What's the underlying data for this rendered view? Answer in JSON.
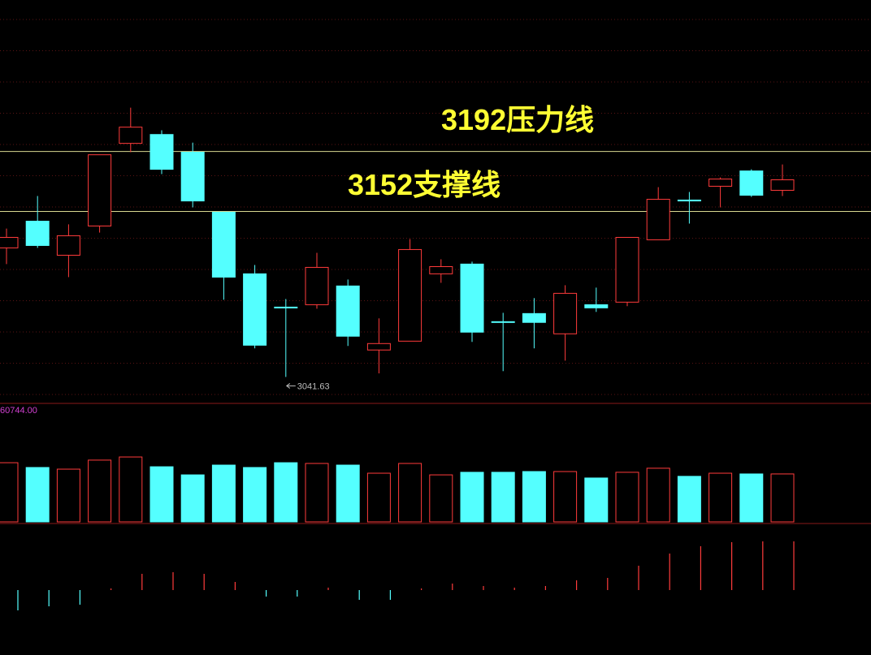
{
  "chart_data": {
    "type": "candlestick",
    "open": [
      3127.7,
      3145.5,
      3122.8,
      3142.3,
      3197.4,
      3203.3,
      3191.5,
      3151.5,
      3110.4,
      3088.2,
      3089.8,
      3102.3,
      3059.6,
      3065.5,
      3110.4,
      3116.9,
      3078.5,
      3083.9,
      3070.4,
      3089.8,
      3091.5,
      3133.1,
      3159.6,
      3168.8,
      3179.0,
      3166.1
    ],
    "close": [
      3134.7,
      3129.3,
      3135.8,
      3189.8,
      3208.2,
      3180.1,
      3159.0,
      3108.2,
      3062.8,
      3087.7,
      3114.7,
      3068.8,
      3063.9,
      3126.6,
      3115.2,
      3071.5,
      3078.0,
      3078.0,
      3097.4,
      3087.7,
      3134.7,
      3160.1,
      3159.0,
      3173.6,
      3162.8,
      3173.1
    ],
    "high": [
      3140.6,
      3162.3,
      3143.4,
      3189.8,
      3221.2,
      3206.1,
      3197.9,
      3151.5,
      3116.3,
      3093.6,
      3124.4,
      3106.6,
      3080.7,
      3133.6,
      3120.1,
      3118.5,
      3084.4,
      3094.2,
      3102.8,
      3101.2,
      3134.7,
      3168.2,
      3165.0,
      3174.7,
      3180.1,
      3183.3
    ],
    "low": [
      3116.9,
      3127.7,
      3108.2,
      3137.9,
      3191.5,
      3176.9,
      3154.7,
      3093.1,
      3060.7,
      3041.63,
      3087.1,
      3062.3,
      3044.0,
      3065.5,
      3104.4,
      3065.0,
      3045.5,
      3060.7,
      3052.5,
      3085.0,
      3088.8,
      3133.1,
      3143.9,
      3154.7,
      3161.7,
      3162.3
    ],
    "ylim": [
      3024,
      3293
    ],
    "up_color": "#ff3b3b",
    "down_color": "#54ffff",
    "annotations": [
      {
        "label": "3192压力线",
        "value": 3192,
        "color": "#ffff33"
      },
      {
        "label": "3152支撑线",
        "value": 3152,
        "color": "#ffff33"
      }
    ],
    "volume": {
      "values": [
        32100,
        29500,
        28600,
        33500,
        35200,
        29900,
        25500,
        30800,
        29500,
        32100,
        31700,
        30800,
        26400,
        31700,
        25500,
        26900,
        26900,
        27300,
        27300,
        23800,
        26900,
        29100,
        24700,
        26400,
        26000,
        26000
      ],
      "ylim": [
        0,
        60744
      ],
      "yticks": [
        {
          "value": 60744,
          "label": "60744.00"
        }
      ],
      "tick_color": "#d040d0"
    },
    "indicator": {
      "values": [
        -25,
        -20,
        -18,
        2,
        20,
        22,
        20,
        10,
        -8,
        -8,
        3,
        -12,
        -12,
        2,
        8,
        5,
        3,
        5,
        12,
        15,
        30,
        45,
        54,
        59,
        60,
        60
      ],
      "ylim": [
        -80,
        82
      ]
    }
  }
}
